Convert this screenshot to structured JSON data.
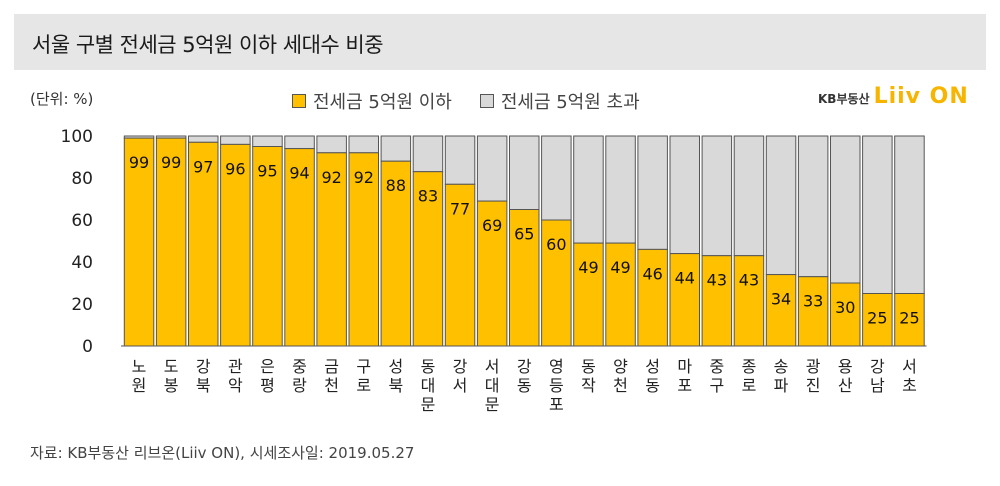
{
  "header": {
    "title": "서울 구별 전세금 5억원 이하 세대수 비중"
  },
  "unit": "(단위: %)",
  "brand": {
    "kb": "KB부동산",
    "liiv": "Liiv ON"
  },
  "source": "자료: KB부동산 리브온(Liiv ON), 시세조사일: 2019.05.27",
  "colors": {
    "below": "#ffc000",
    "above": "#d9d9d9",
    "border": "#555555"
  },
  "chart_data": {
    "type": "bar",
    "stacked": true,
    "categories": [
      "노원",
      "도봉",
      "강북",
      "관악",
      "은평",
      "중랑",
      "금천",
      "구로",
      "성북",
      "동대문",
      "강서",
      "서대문",
      "강동",
      "영등포",
      "동작",
      "양천",
      "성동",
      "마포",
      "중구",
      "종로",
      "송파",
      "광진",
      "용산",
      "강남",
      "서초"
    ],
    "series": [
      {
        "name": "전세금 5억원 이하",
        "values": [
          99,
          99,
          97,
          96,
          95,
          94,
          92,
          92,
          88,
          83,
          77,
          69,
          65,
          60,
          49,
          49,
          46,
          44,
          43,
          43,
          34,
          33,
          30,
          25,
          25
        ]
      },
      {
        "name": "전세금 5억원 초과",
        "values": [
          1,
          1,
          3,
          4,
          5,
          6,
          8,
          8,
          12,
          17,
          23,
          31,
          35,
          40,
          51,
          51,
          54,
          56,
          57,
          57,
          66,
          67,
          70,
          75,
          75
        ]
      }
    ],
    "ylim": [
      0,
      100
    ],
    "yticks": [
      0,
      20,
      40,
      60,
      80,
      100
    ],
    "legend_position": "top-center"
  }
}
